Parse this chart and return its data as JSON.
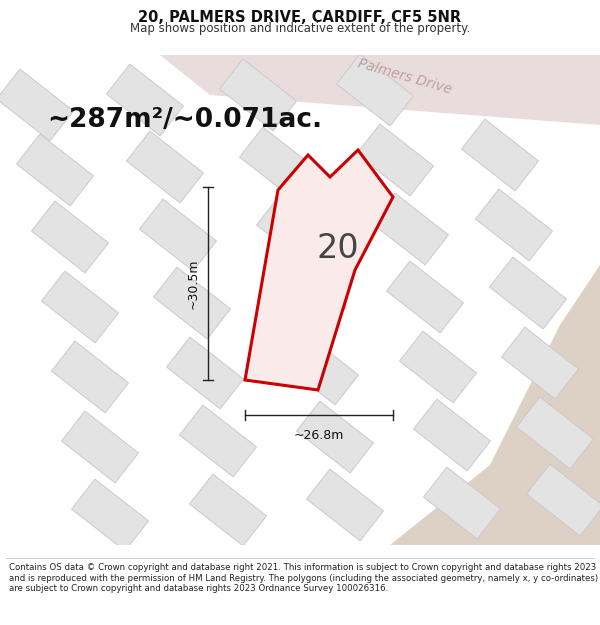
{
  "title": "20, PALMERS DRIVE, CARDIFF, CF5 5NR",
  "subtitle": "Map shows position and indicative extent of the property.",
  "area_label": "~287m²/~0.071ac.",
  "plot_number": "20",
  "dim_height": "~30.5m",
  "dim_width": "~26.8m",
  "road_label": "Palmers Drive",
  "footer": "Contains OS data © Crown copyright and database right 2021. This information is subject to Crown copyright and database rights 2023 and is reproduced with the permission of HM Land Registry. The polygons (including the associated geometry, namely x, y co-ordinates) are subject to Crown copyright and database rights 2023 Ordnance Survey 100026316.",
  "map_bg": "#eeecec",
  "plot_fill": "#faeaea",
  "plot_stroke": "#cc0000",
  "block_color": "#e3e3e3",
  "block_stroke": "#d0c8c8",
  "beige_color": "#ddd0c4",
  "road_band_color": "#e8dcdc",
  "title_fontsize": 10.5,
  "subtitle_fontsize": 8.5,
  "area_fontsize": 19,
  "plot_num_fontsize": 24,
  "dim_fontsize": 9,
  "road_fontsize": 10,
  "footer_fontsize": 6.2
}
